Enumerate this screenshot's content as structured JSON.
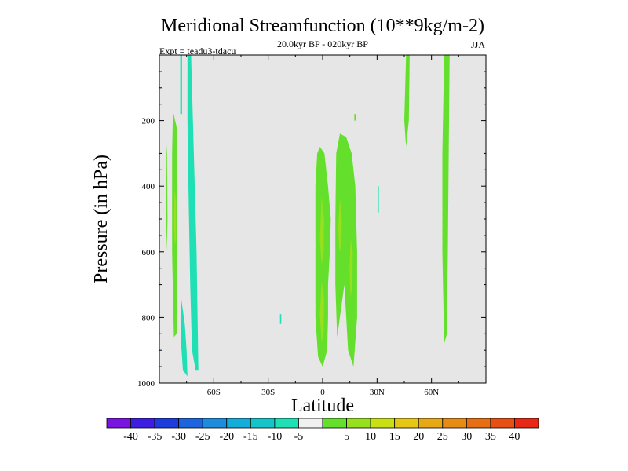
{
  "chart_data": {
    "type": "contour",
    "title": "Meridional Streamfunction (10**9kg/m-2)",
    "subtitle_left": "Expt = teadu3-tdacu",
    "subtitle_center": "20.0kyr BP - 020kyr BP",
    "subtitle_right": "JJA",
    "xlabel": "Latitude",
    "ylabel": "Pressure (in hPa)",
    "xlim": [
      -90,
      90
    ],
    "ylim": [
      0,
      1000
    ],
    "y_inverted": true,
    "xticks": [
      {
        "value": -60,
        "label": "60S"
      },
      {
        "value": -30,
        "label": "30S"
      },
      {
        "value": 0,
        "label": "0"
      },
      {
        "value": 30,
        "label": "30N"
      },
      {
        "value": 60,
        "label": "60N"
      }
    ],
    "yticks": [
      {
        "value": 200,
        "label": "200"
      },
      {
        "value": 400,
        "label": "400"
      },
      {
        "value": 600,
        "label": "600"
      },
      {
        "value": 800,
        "label": "800"
      },
      {
        "value": 1000,
        "label": "1000"
      }
    ],
    "background_color": "#e6e6e6",
    "colorbar": {
      "colors": [
        "#7a14e0",
        "#3c1ee0",
        "#1e3cdc",
        "#1e64dc",
        "#1e8cdc",
        "#14acd8",
        "#14c4c8",
        "#1ee0b4",
        "#f0f0f0",
        "#64e02c",
        "#96e01e",
        "#c8e014",
        "#e6c814",
        "#e6a814",
        "#e68c14",
        "#e66e14",
        "#e65014",
        "#e62814"
      ],
      "labels": [
        "-40",
        "-35",
        "-30",
        "-25",
        "-20",
        "-15",
        "-10",
        "-5",
        "5",
        "10",
        "15",
        "20",
        "25",
        "30",
        "35",
        "40"
      ]
    },
    "regions": [
      {
        "level": "-5",
        "color": "#1ee0b4",
        "points": [
          [
            -78.5,
            0
          ],
          [
            -77.5,
            0
          ],
          [
            -77.5,
            180
          ],
          [
            -78.5,
            180
          ]
        ]
      },
      {
        "level": "-5",
        "color": "#1ee0b4",
        "points": [
          [
            -74.5,
            0
          ],
          [
            -72.5,
            0
          ],
          [
            -71,
            300
          ],
          [
            -69.5,
            600
          ],
          [
            -68.5,
            960
          ],
          [
            -70,
            960
          ],
          [
            -72,
            900
          ],
          [
            -73,
            700
          ],
          [
            -74,
            400
          ],
          [
            -74.5,
            200
          ]
        ]
      },
      {
        "level": "-5",
        "color": "#1ee0b4",
        "points": [
          [
            -78,
            740
          ],
          [
            -76,
            820
          ],
          [
            -75,
            900
          ],
          [
            -74.5,
            980
          ],
          [
            -77,
            960
          ],
          [
            -78,
            880
          ]
        ]
      },
      {
        "level": "-5",
        "color": "#1ee0b4",
        "points": [
          [
            -23.5,
            790
          ],
          [
            -22.8,
            790
          ],
          [
            -22.8,
            820
          ],
          [
            -23.5,
            820
          ]
        ]
      },
      {
        "level": "-5",
        "color": "#1ee0b4",
        "points": [
          [
            30.5,
            400
          ],
          [
            31,
            400
          ],
          [
            31,
            480
          ],
          [
            30.5,
            480
          ]
        ]
      },
      {
        "level": "5",
        "color": "#64e02c",
        "points": [
          [
            -86.5,
            240
          ],
          [
            -85.8,
            300
          ],
          [
            -85.5,
            500
          ],
          [
            -86,
            600
          ],
          [
            -86.5,
            400
          ]
        ]
      },
      {
        "level": "5",
        "color": "#64e02c",
        "points": [
          [
            -82.5,
            170
          ],
          [
            -80.5,
            220
          ],
          [
            -80,
            400
          ],
          [
            -80,
            600
          ],
          [
            -80.5,
            850
          ],
          [
            -82,
            860
          ],
          [
            -83,
            600
          ],
          [
            -83,
            300
          ]
        ]
      },
      {
        "level": "5",
        "color": "#64e02c",
        "points": [
          [
            -1.5,
            280
          ],
          [
            1,
            300
          ],
          [
            3,
            400
          ],
          [
            4.5,
            500
          ],
          [
            4,
            600
          ],
          [
            3,
            700
          ],
          [
            3,
            800
          ],
          [
            2.5,
            900
          ],
          [
            0,
            950
          ],
          [
            -2.5,
            920
          ],
          [
            -4,
            800
          ],
          [
            -4,
            600
          ],
          [
            -4,
            400
          ],
          [
            -3,
            300
          ]
        ]
      },
      {
        "level": "5",
        "color": "#64e02c",
        "points": [
          [
            9.5,
            240
          ],
          [
            13,
            250
          ],
          [
            16,
            300
          ],
          [
            18,
            400
          ],
          [
            19,
            600
          ],
          [
            19,
            800
          ],
          [
            17,
            950
          ],
          [
            14,
            900
          ],
          [
            12,
            700
          ],
          [
            10,
            780
          ],
          [
            8,
            860
          ],
          [
            7,
            700
          ],
          [
            7,
            500
          ],
          [
            7.5,
            300
          ]
        ]
      },
      {
        "level": "5",
        "color": "#64e02c",
        "points": [
          [
            17.5,
            180
          ],
          [
            18.5,
            180
          ],
          [
            18.5,
            200
          ],
          [
            17.5,
            200
          ]
        ]
      },
      {
        "level": "5",
        "color": "#64e02c",
        "points": [
          [
            46,
            0
          ],
          [
            48,
            0
          ],
          [
            47.5,
            200
          ],
          [
            46,
            280
          ],
          [
            45,
            200
          ]
        ]
      },
      {
        "level": "5",
        "color": "#64e02c",
        "points": [
          [
            67,
            0
          ],
          [
            70,
            0
          ],
          [
            69.5,
            300
          ],
          [
            69,
            600
          ],
          [
            68.5,
            850
          ],
          [
            67,
            880
          ],
          [
            66,
            600
          ],
          [
            66,
            300
          ]
        ]
      },
      {
        "level": "10",
        "color": "#96e01e",
        "points": [
          [
            -81.5,
            410
          ],
          [
            -80.8,
            450
          ],
          [
            -80.8,
            560
          ],
          [
            -81.5,
            580
          ],
          [
            -82,
            500
          ]
        ]
      },
      {
        "level": "10",
        "color": "#96e01e",
        "points": [
          [
            -0.5,
            430
          ],
          [
            0.8,
            500
          ],
          [
            0.6,
            600
          ],
          [
            -0.5,
            640
          ],
          [
            -1.5,
            560
          ]
        ]
      },
      {
        "level": "10",
        "color": "#96e01e",
        "points": [
          [
            -0.5,
            690
          ],
          [
            0.8,
            740
          ],
          [
            0.6,
            840
          ],
          [
            -0.5,
            880
          ],
          [
            -1.5,
            790
          ]
        ]
      },
      {
        "level": "10",
        "color": "#96e01e",
        "points": [
          [
            9.5,
            440
          ],
          [
            10.6,
            500
          ],
          [
            10.3,
            580
          ],
          [
            9.2,
            600
          ],
          [
            8.6,
            520
          ]
        ]
      },
      {
        "level": "10",
        "color": "#96e01e",
        "points": [
          [
            15.5,
            560
          ],
          [
            16.6,
            600
          ],
          [
            16.4,
            700
          ],
          [
            15.4,
            740
          ],
          [
            14.8,
            650
          ]
        ]
      }
    ]
  }
}
